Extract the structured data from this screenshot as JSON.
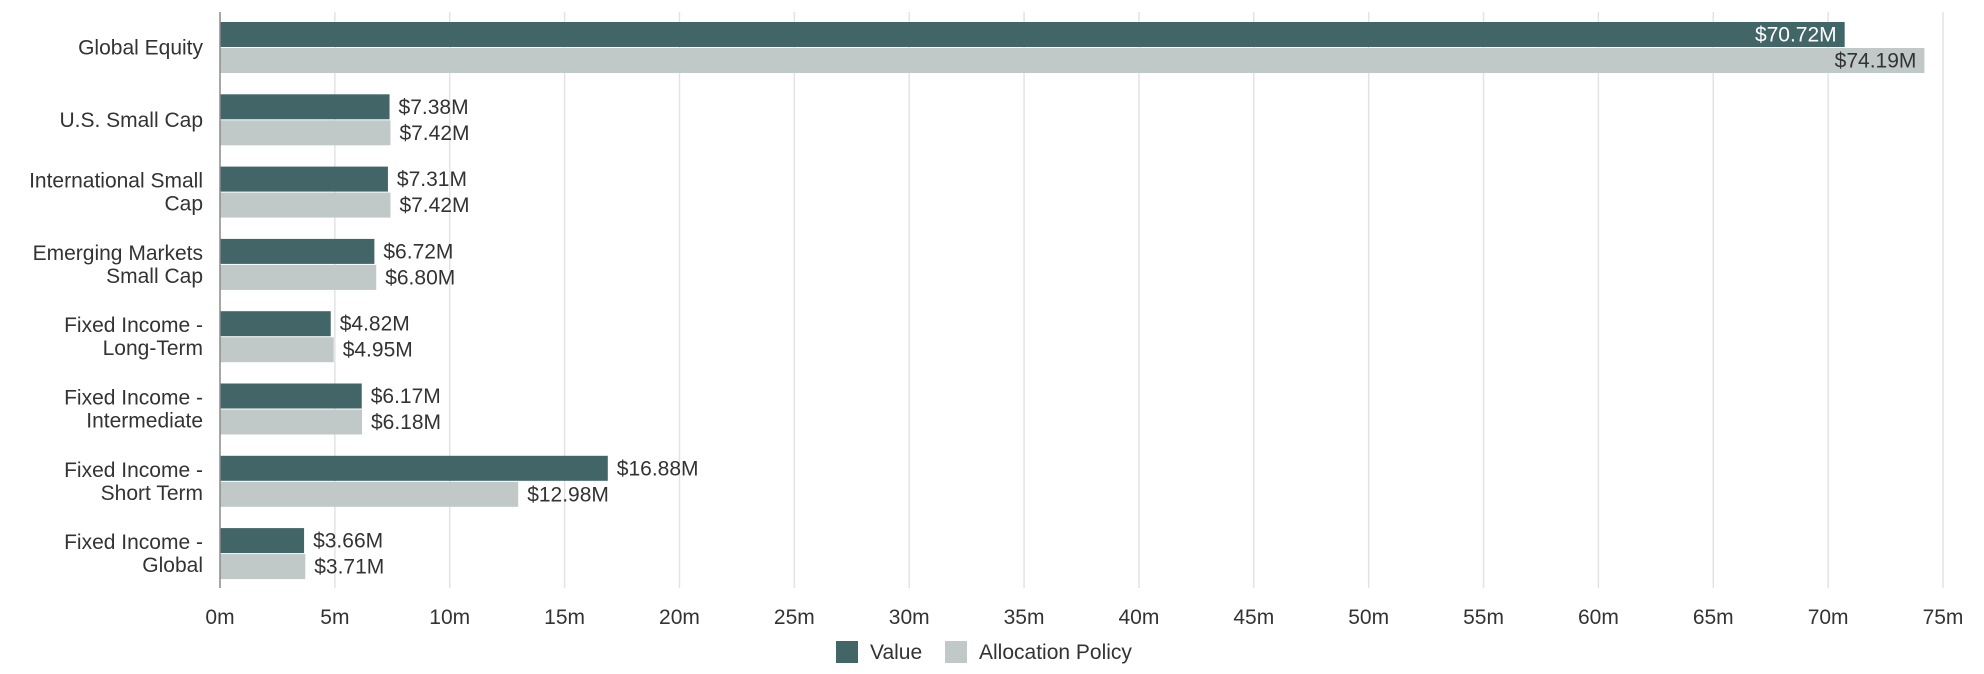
{
  "chart_data": {
    "type": "bar",
    "orientation": "horizontal",
    "categories": [
      [
        "Global Equity"
      ],
      [
        "U.S. Small Cap"
      ],
      [
        "International Small",
        "Cap"
      ],
      [
        "Emerging Markets",
        "Small Cap"
      ],
      [
        "Fixed Income -",
        "Long-Term"
      ],
      [
        "Fixed Income -",
        "Intermediate"
      ],
      [
        "Fixed Income -",
        "Short Term"
      ],
      [
        "Fixed Income -",
        "Global"
      ]
    ],
    "series": [
      {
        "name": "Value",
        "color": "#426567",
        "values": [
          70.72,
          7.38,
          7.31,
          6.72,
          4.82,
          6.17,
          16.88,
          3.66
        ],
        "labels": [
          "$70.72M",
          "$7.38M",
          "$7.31M",
          "$6.72M",
          "$4.82M",
          "$6.17M",
          "$16.88M",
          "$3.66M"
        ]
      },
      {
        "name": "Allocation Policy",
        "color": "#c0c9c8",
        "values": [
          74.19,
          7.42,
          7.42,
          6.8,
          4.95,
          6.18,
          12.98,
          3.71
        ],
        "labels": [
          "$74.19M",
          "$7.42M",
          "$7.42M",
          "$6.80M",
          "$4.95M",
          "$6.18M",
          "$12.98M",
          "$3.71M"
        ]
      }
    ],
    "x_ticks": [
      0,
      5,
      10,
      15,
      20,
      25,
      30,
      35,
      40,
      45,
      50,
      55,
      60,
      65,
      70,
      75
    ],
    "x_tick_labels": [
      "0m",
      "5m",
      "10m",
      "15m",
      "20m",
      "25m",
      "30m",
      "35m",
      "40m",
      "45m",
      "50m",
      "55m",
      "60m",
      "65m",
      "70m",
      "75m"
    ],
    "xlim": [
      0,
      75
    ],
    "grid": true,
    "legend": "bottom-center",
    "title": "",
    "xlabel": "",
    "ylabel": ""
  }
}
